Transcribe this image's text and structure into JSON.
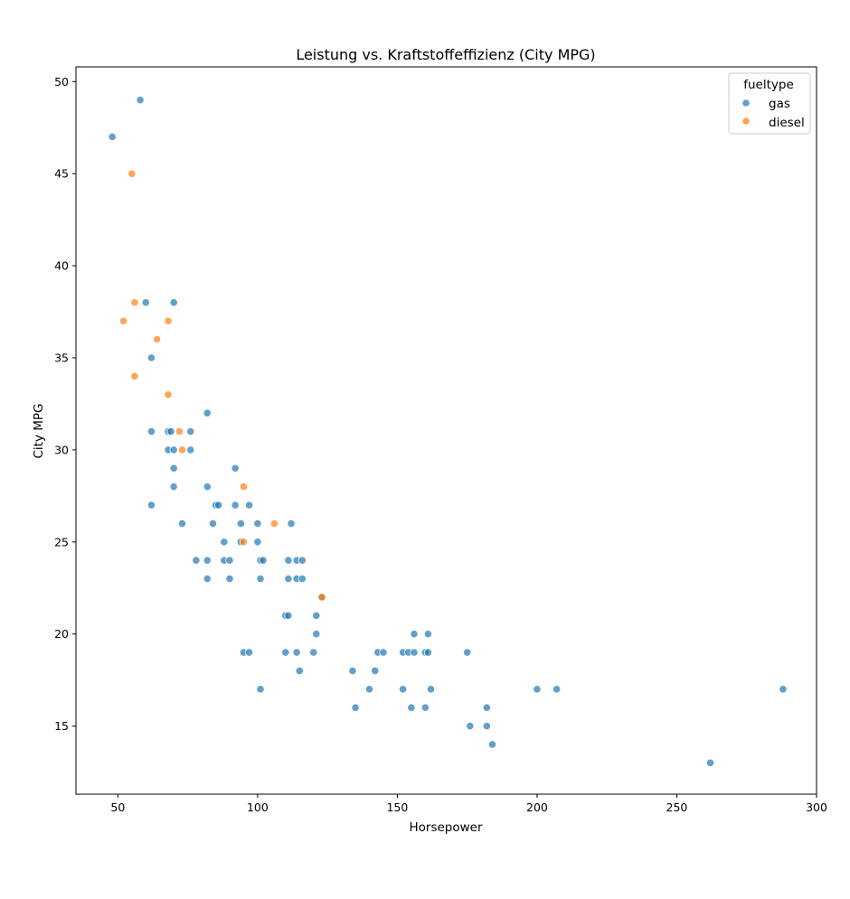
{
  "chart_data": {
    "type": "scatter",
    "title": "Leistung vs. Kraftstoffeffizienz (City MPG)",
    "xlabel": "Horsepower",
    "ylabel": "City MPG",
    "xlim": [
      35,
      300
    ],
    "ylim": [
      11.3,
      50.8
    ],
    "xticks": [
      50,
      100,
      150,
      200,
      250,
      300
    ],
    "yticks": [
      15,
      20,
      25,
      30,
      35,
      40,
      45,
      50
    ],
    "grid": false,
    "legend": {
      "title": "fueltype",
      "placement": "top-right"
    },
    "series": [
      {
        "name": "gas",
        "color": "#1f77b4",
        "points": [
          [
            48,
            47
          ],
          [
            58,
            49
          ],
          [
            60,
            38
          ],
          [
            62,
            35
          ],
          [
            62,
            31
          ],
          [
            62,
            27
          ],
          [
            68,
            31
          ],
          [
            68,
            30
          ],
          [
            69,
            31
          ],
          [
            70,
            38
          ],
          [
            70,
            30
          ],
          [
            70,
            29
          ],
          [
            70,
            28
          ],
          [
            73,
            26
          ],
          [
            76,
            31
          ],
          [
            76,
            30
          ],
          [
            78,
            24
          ],
          [
            82,
            32
          ],
          [
            82,
            28
          ],
          [
            82,
            24
          ],
          [
            82,
            23
          ],
          [
            84,
            26
          ],
          [
            85,
            27
          ],
          [
            86,
            27
          ],
          [
            88,
            25
          ],
          [
            88,
            24
          ],
          [
            90,
            24
          ],
          [
            90,
            23
          ],
          [
            92,
            29
          ],
          [
            92,
            27
          ],
          [
            94,
            26
          ],
          [
            94,
            25
          ],
          [
            95,
            19
          ],
          [
            97,
            27
          ],
          [
            97,
            19
          ],
          [
            100,
            26
          ],
          [
            100,
            25
          ],
          [
            101,
            24
          ],
          [
            101,
            23
          ],
          [
            101,
            17
          ],
          [
            102,
            24
          ],
          [
            110,
            21
          ],
          [
            110,
            19
          ],
          [
            111,
            24
          ],
          [
            111,
            23
          ],
          [
            111,
            21
          ],
          [
            112,
            26
          ],
          [
            114,
            24
          ],
          [
            114,
            23
          ],
          [
            114,
            19
          ],
          [
            115,
            18
          ],
          [
            116,
            24
          ],
          [
            116,
            23
          ],
          [
            120,
            19
          ],
          [
            121,
            21
          ],
          [
            121,
            20
          ],
          [
            123,
            22
          ],
          [
            134,
            18
          ],
          [
            135,
            16
          ],
          [
            140,
            17
          ],
          [
            142,
            18
          ],
          [
            143,
            19
          ],
          [
            145,
            19
          ],
          [
            152,
            19
          ],
          [
            152,
            17
          ],
          [
            154,
            19
          ],
          [
            155,
            16
          ],
          [
            156,
            20
          ],
          [
            156,
            19
          ],
          [
            160,
            19
          ],
          [
            160,
            16
          ],
          [
            161,
            20
          ],
          [
            161,
            19
          ],
          [
            162,
            17
          ],
          [
            175,
            19
          ],
          [
            176,
            15
          ],
          [
            182,
            16
          ],
          [
            182,
            15
          ],
          [
            184,
            14
          ],
          [
            200,
            17
          ],
          [
            207,
            17
          ],
          [
            262,
            13
          ],
          [
            288,
            17
          ]
        ]
      },
      {
        "name": "diesel",
        "color": "#ff7f0e",
        "points": [
          [
            52,
            37
          ],
          [
            55,
            45
          ],
          [
            56,
            38
          ],
          [
            56,
            34
          ],
          [
            64,
            36
          ],
          [
            68,
            37
          ],
          [
            68,
            33
          ],
          [
            72,
            31
          ],
          [
            73,
            30
          ],
          [
            95,
            28
          ],
          [
            95,
            25
          ],
          [
            106,
            26
          ],
          [
            123,
            22
          ]
        ]
      }
    ]
  }
}
